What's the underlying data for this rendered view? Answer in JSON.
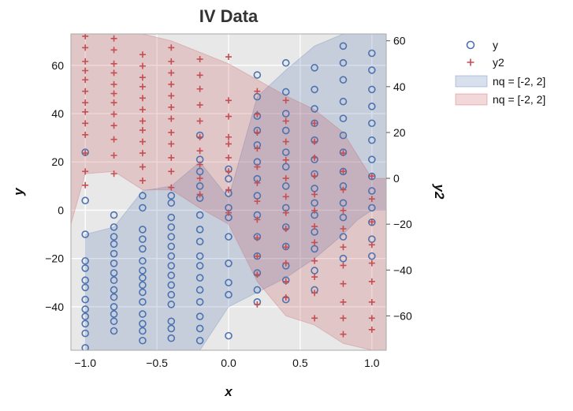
{
  "chart_data": {
    "type": "scatter",
    "title": "IV Data",
    "xlabel": "x",
    "ylabel": "y",
    "y2label": "y2",
    "xlim": [
      -1.1,
      1.1
    ],
    "ylim": [
      -58,
      73
    ],
    "y2lim": [
      -75,
      63
    ],
    "x_ticks": [
      -1.0,
      -0.5,
      0.0,
      0.5,
      1.0
    ],
    "x_tick_labels": [
      "−1.0",
      "−0.5",
      "0.0",
      "0.5",
      "1.0"
    ],
    "y_ticks": [
      -40,
      -20,
      0,
      20,
      40,
      60
    ],
    "y_tick_labels": [
      "−40",
      "−20",
      "0",
      "20",
      "40",
      "60"
    ],
    "y2_ticks": [
      -60,
      -40,
      -20,
      0,
      20,
      40,
      60
    ],
    "y2_tick_labels": [
      "−60",
      "−40",
      "−20",
      "0",
      "20",
      "40",
      "60"
    ],
    "grid": true,
    "background": "#e8e8e8",
    "legend_position": "outside-right",
    "x": [
      -1.0,
      -0.8,
      -0.6,
      -0.4,
      -0.2,
      0.0,
      0.2,
      0.4,
      0.6,
      0.8,
      1.0
    ],
    "series": [
      {
        "name": "y",
        "axis": "left",
        "marker": "circle-open",
        "color": "#4c72b0",
        "points": [
          [
            -1.0,
            24
          ],
          [
            -1.0,
            4
          ],
          [
            -1.0,
            -10
          ],
          [
            -1.0,
            -21
          ],
          [
            -1.0,
            -24
          ],
          [
            -1.0,
            -29
          ],
          [
            -1.0,
            -32
          ],
          [
            -1.0,
            -37
          ],
          [
            -1.0,
            -41
          ],
          [
            -1.0,
            -44
          ],
          [
            -1.0,
            -47
          ],
          [
            -1.0,
            -51
          ],
          [
            -1.0,
            -57
          ],
          [
            -0.8,
            -2
          ],
          [
            -0.8,
            -7
          ],
          [
            -0.8,
            -11
          ],
          [
            -0.8,
            -14
          ],
          [
            -0.8,
            -18
          ],
          [
            -0.8,
            -22
          ],
          [
            -0.8,
            -26
          ],
          [
            -0.8,
            -29
          ],
          [
            -0.8,
            -33
          ],
          [
            -0.8,
            -36
          ],
          [
            -0.8,
            -40
          ],
          [
            -0.8,
            -43
          ],
          [
            -0.8,
            -46
          ],
          [
            -0.8,
            -50
          ],
          [
            -0.6,
            6
          ],
          [
            -0.6,
            1
          ],
          [
            -0.6,
            -8
          ],
          [
            -0.6,
            -12
          ],
          [
            -0.6,
            -16
          ],
          [
            -0.6,
            -21
          ],
          [
            -0.6,
            -25
          ],
          [
            -0.6,
            -28
          ],
          [
            -0.6,
            -31
          ],
          [
            -0.6,
            -34
          ],
          [
            -0.6,
            -38
          ],
          [
            -0.6,
            -43
          ],
          [
            -0.6,
            -47
          ],
          [
            -0.6,
            -50
          ],
          [
            -0.6,
            -54
          ],
          [
            -0.4,
            6
          ],
          [
            -0.4,
            3
          ],
          [
            -0.4,
            -3
          ],
          [
            -0.4,
            -7
          ],
          [
            -0.4,
            -11
          ],
          [
            -0.4,
            -15
          ],
          [
            -0.4,
            -19
          ],
          [
            -0.4,
            -23
          ],
          [
            -0.4,
            -27
          ],
          [
            -0.4,
            -31
          ],
          [
            -0.4,
            -35
          ],
          [
            -0.4,
            -39
          ],
          [
            -0.4,
            -46
          ],
          [
            -0.4,
            -49
          ],
          [
            -0.4,
            -53
          ],
          [
            -0.2,
            31
          ],
          [
            -0.2,
            21
          ],
          [
            -0.2,
            16
          ],
          [
            -0.2,
            10
          ],
          [
            -0.2,
            5
          ],
          [
            -0.2,
            -2
          ],
          [
            -0.2,
            -8
          ],
          [
            -0.2,
            -13
          ],
          [
            -0.2,
            -19
          ],
          [
            -0.2,
            -23
          ],
          [
            -0.2,
            -28
          ],
          [
            -0.2,
            -33
          ],
          [
            -0.2,
            -38
          ],
          [
            -0.2,
            -44
          ],
          [
            -0.2,
            -49
          ],
          [
            -0.2,
            -54
          ],
          [
            0.0,
            17
          ],
          [
            0.0,
            13
          ],
          [
            0.0,
            7
          ],
          [
            0.0,
            1
          ],
          [
            0.0,
            -3
          ],
          [
            0.0,
            -11
          ],
          [
            0.0,
            -22
          ],
          [
            0.0,
            -30
          ],
          [
            0.0,
            -35
          ],
          [
            0.0,
            -52
          ],
          [
            0.2,
            56
          ],
          [
            0.2,
            47
          ],
          [
            0.2,
            39
          ],
          [
            0.2,
            33
          ],
          [
            0.2,
            27
          ],
          [
            0.2,
            20
          ],
          [
            0.2,
            13
          ],
          [
            0.2,
            6
          ],
          [
            0.2,
            -2
          ],
          [
            0.2,
            -11
          ],
          [
            0.2,
            -19
          ],
          [
            0.2,
            -26
          ],
          [
            0.2,
            -33
          ],
          [
            0.2,
            -38
          ],
          [
            0.4,
            61
          ],
          [
            0.4,
            49
          ],
          [
            0.4,
            40
          ],
          [
            0.4,
            33
          ],
          [
            0.4,
            24
          ],
          [
            0.4,
            18
          ],
          [
            0.4,
            10
          ],
          [
            0.4,
            1
          ],
          [
            0.4,
            -7
          ],
          [
            0.4,
            -15
          ],
          [
            0.4,
            -23
          ],
          [
            0.4,
            -29
          ],
          [
            0.4,
            -37
          ],
          [
            0.6,
            59
          ],
          [
            0.6,
            50
          ],
          [
            0.6,
            42
          ],
          [
            0.6,
            36
          ],
          [
            0.6,
            29
          ],
          [
            0.6,
            21
          ],
          [
            0.6,
            15
          ],
          [
            0.6,
            9
          ],
          [
            0.6,
            3
          ],
          [
            0.6,
            -2
          ],
          [
            0.6,
            -9
          ],
          [
            0.6,
            -16
          ],
          [
            0.6,
            -25
          ],
          [
            0.6,
            -33
          ],
          [
            0.8,
            68
          ],
          [
            0.8,
            61
          ],
          [
            0.8,
            54
          ],
          [
            0.8,
            45
          ],
          [
            0.8,
            38
          ],
          [
            0.8,
            31
          ],
          [
            0.8,
            24
          ],
          [
            0.8,
            16
          ],
          [
            0.8,
            10
          ],
          [
            0.8,
            3
          ],
          [
            0.8,
            -3
          ],
          [
            0.8,
            -11
          ],
          [
            0.8,
            -20
          ],
          [
            1.0,
            65
          ],
          [
            1.0,
            58
          ],
          [
            1.0,
            50
          ],
          [
            1.0,
            43
          ],
          [
            1.0,
            36
          ],
          [
            1.0,
            29
          ],
          [
            1.0,
            21
          ],
          [
            1.0,
            14
          ],
          [
            1.0,
            8
          ],
          [
            1.0,
            1
          ],
          [
            1.0,
            -5
          ],
          [
            1.0,
            -12
          ],
          [
            1.0,
            -19
          ]
        ]
      },
      {
        "name": "y2",
        "axis": "right",
        "marker": "plus",
        "color": "#c44e52",
        "points": [
          [
            -1.0,
            62
          ],
          [
            -1.0,
            57
          ],
          [
            -1.0,
            51
          ],
          [
            -1.0,
            47
          ],
          [
            -1.0,
            43
          ],
          [
            -1.0,
            38
          ],
          [
            -1.0,
            33
          ],
          [
            -1.0,
            29
          ],
          [
            -1.0,
            24
          ],
          [
            -1.0,
            19
          ],
          [
            -1.0,
            11
          ],
          [
            -1.0,
            3
          ],
          [
            -1.0,
            -3
          ],
          [
            -0.8,
            61
          ],
          [
            -0.8,
            56
          ],
          [
            -0.8,
            50
          ],
          [
            -0.8,
            46
          ],
          [
            -0.8,
            41
          ],
          [
            -0.8,
            37
          ],
          [
            -0.8,
            33
          ],
          [
            -0.8,
            28
          ],
          [
            -0.8,
            23
          ],
          [
            -0.8,
            17
          ],
          [
            -0.8,
            10
          ],
          [
            -0.8,
            2
          ],
          [
            -0.6,
            54
          ],
          [
            -0.6,
            49
          ],
          [
            -0.6,
            44
          ],
          [
            -0.6,
            40
          ],
          [
            -0.6,
            35
          ],
          [
            -0.6,
            30
          ],
          [
            -0.6,
            25
          ],
          [
            -0.6,
            21
          ],
          [
            -0.6,
            16
          ],
          [
            -0.6,
            11
          ],
          [
            -0.6,
            5
          ],
          [
            -0.6,
            -1
          ],
          [
            -0.4,
            57
          ],
          [
            -0.4,
            51
          ],
          [
            -0.4,
            46
          ],
          [
            -0.4,
            41
          ],
          [
            -0.4,
            36
          ],
          [
            -0.4,
            31
          ],
          [
            -0.4,
            26
          ],
          [
            -0.4,
            20
          ],
          [
            -0.4,
            15
          ],
          [
            -0.4,
            9
          ],
          [
            -0.4,
            3
          ],
          [
            -0.4,
            -4
          ],
          [
            -0.2,
            52
          ],
          [
            -0.2,
            45
          ],
          [
            -0.2,
            39
          ],
          [
            -0.2,
            32
          ],
          [
            -0.2,
            25
          ],
          [
            -0.2,
            18
          ],
          [
            -0.2,
            12
          ],
          [
            -0.2,
            6
          ],
          [
            -0.2,
            0
          ],
          [
            -0.2,
            -7
          ],
          [
            0.0,
            53
          ],
          [
            0.0,
            34
          ],
          [
            0.0,
            27
          ],
          [
            0.0,
            18
          ],
          [
            0.0,
            15
          ],
          [
            0.0,
            9
          ],
          [
            0.0,
            3
          ],
          [
            0.0,
            -5
          ],
          [
            0.0,
            -15
          ],
          [
            0.2,
            38
          ],
          [
            0.2,
            28
          ],
          [
            0.2,
            20
          ],
          [
            0.2,
            13
          ],
          [
            0.2,
            5
          ],
          [
            0.2,
            -2
          ],
          [
            0.2,
            -10
          ],
          [
            0.2,
            -18
          ],
          [
            0.2,
            -26
          ],
          [
            0.2,
            -34
          ],
          [
            0.2,
            -42
          ],
          [
            0.2,
            -55
          ],
          [
            0.4,
            34
          ],
          [
            0.4,
            25
          ],
          [
            0.4,
            16
          ],
          [
            0.4,
            8
          ],
          [
            0.4,
            0
          ],
          [
            0.4,
            -8
          ],
          [
            0.4,
            -15
          ],
          [
            0.4,
            -22
          ],
          [
            0.4,
            -30
          ],
          [
            0.4,
            -37
          ],
          [
            0.4,
            -45
          ],
          [
            0.4,
            -52
          ],
          [
            0.6,
            24
          ],
          [
            0.6,
            16
          ],
          [
            0.6,
            9
          ],
          [
            0.6,
            1
          ],
          [
            0.6,
            -7
          ],
          [
            0.6,
            -14
          ],
          [
            0.6,
            -21
          ],
          [
            0.6,
            -28
          ],
          [
            0.6,
            -36
          ],
          [
            0.6,
            -43
          ],
          [
            0.6,
            -50
          ],
          [
            0.6,
            -61
          ],
          [
            0.8,
            11
          ],
          [
            0.8,
            3
          ],
          [
            0.8,
            -5
          ],
          [
            0.8,
            -14
          ],
          [
            0.8,
            -22
          ],
          [
            0.8,
            -30
          ],
          [
            0.8,
            -38
          ],
          [
            0.8,
            -46
          ],
          [
            0.8,
            -54
          ],
          [
            0.8,
            -61
          ],
          [
            0.8,
            -68
          ],
          [
            1.0,
            1
          ],
          [
            1.0,
            -9
          ],
          [
            1.0,
            -19
          ],
          [
            1.0,
            -29
          ],
          [
            1.0,
            -37
          ],
          [
            1.0,
            -45
          ],
          [
            1.0,
            -54
          ],
          [
            1.0,
            -61
          ],
          [
            1.0,
            -66
          ]
        ]
      }
    ],
    "bands": [
      {
        "name": "nq = [-2, 2]",
        "axis": "left",
        "color": "#4c72b0",
        "x": [
          -1.0,
          -0.8,
          -0.6,
          -0.4,
          -0.2,
          0.0,
          0.2,
          0.4,
          0.6,
          0.8,
          0.9,
          1.0,
          1.1
        ],
        "lower": [
          -58,
          -58,
          -58,
          -58,
          -58,
          -40,
          -34,
          -28,
          -20,
          -10,
          -4,
          0,
          0
        ],
        "upper": [
          -10,
          -7,
          8,
          10,
          20,
          5,
          47,
          58,
          68,
          73,
          73,
          73,
          73
        ]
      },
      {
        "name": "nq = [-2, 2]",
        "axis": "right",
        "color": "#c44e52",
        "x": [
          -1.1,
          -1.0,
          -0.8,
          -0.6,
          -0.4,
          -0.2,
          0.0,
          0.2,
          0.4,
          0.6,
          0.8,
          1.0,
          1.1
        ],
        "lower": [
          -20,
          2,
          3,
          -5,
          -5,
          -13,
          -20,
          -45,
          -60,
          -64,
          -72,
          -75,
          -75
        ],
        "upper": [
          63,
          63,
          63,
          63,
          60,
          55,
          50,
          43,
          36,
          30,
          20,
          0,
          0
        ]
      }
    ]
  }
}
